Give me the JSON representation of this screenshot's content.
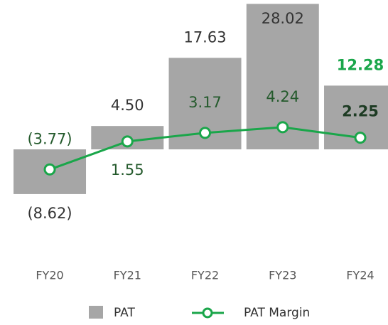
{
  "chart_data": {
    "type": "bar_line",
    "categories": [
      "FY20",
      "FY21",
      "FY22",
      "FY23",
      "FY24"
    ],
    "series": [
      {
        "name": "PAT",
        "type": "bar",
        "color": "#a6a6a6",
        "values": [
          -8.62,
          4.5,
          17.63,
          28.02,
          12.28
        ],
        "value_labels": [
          "(8.62)",
          "4.50",
          "17.63",
          "28.02",
          "12.28"
        ]
      },
      {
        "name": "PAT Margin",
        "type": "line",
        "axis": "y2",
        "color": "#1aa64a",
        "values": [
          -3.77,
          1.55,
          3.17,
          4.24,
          2.25
        ],
        "value_labels": [
          "(3.77)",
          "1.55",
          "3.17",
          "4.24",
          "2.25"
        ]
      }
    ],
    "ylim": [
      -10,
      28.5
    ],
    "y2lim": [
      -9.8,
      28.1
    ],
    "legend": "bottom"
  }
}
